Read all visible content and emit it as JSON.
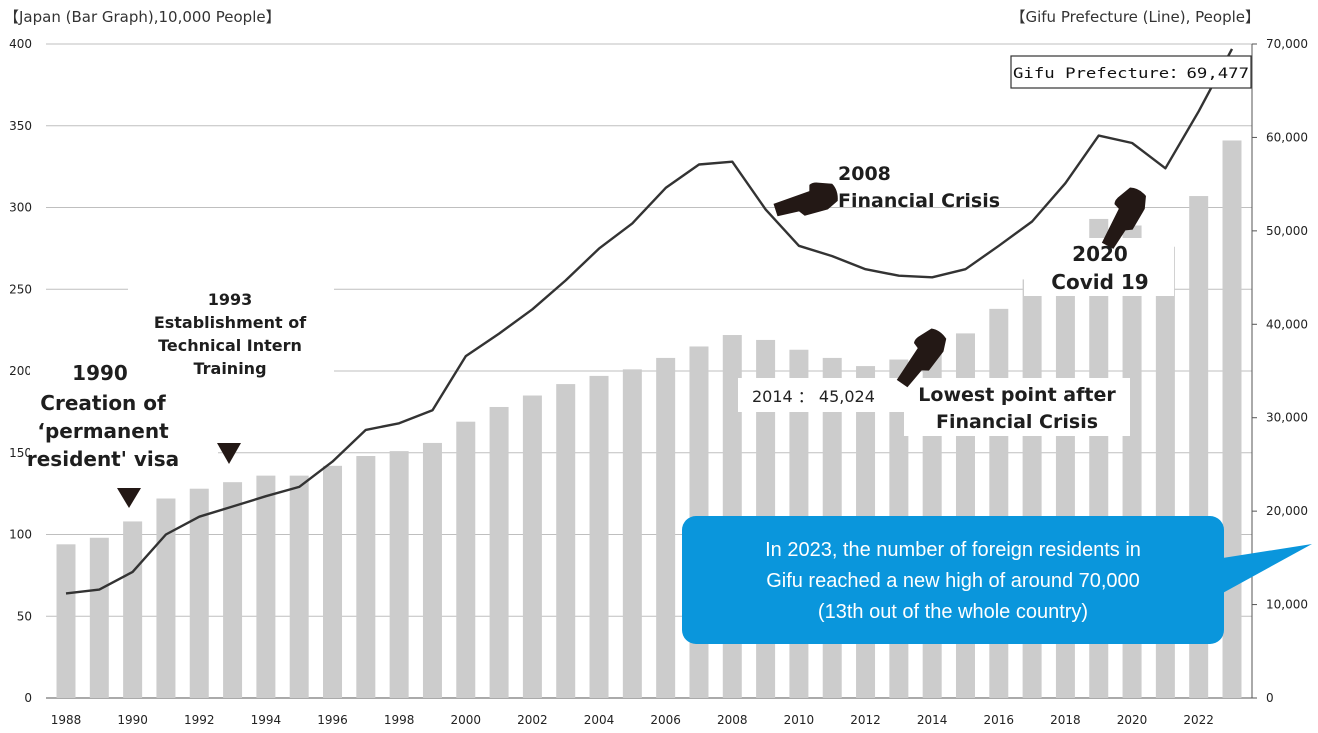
{
  "chart_data": {
    "type": "bar+line",
    "left_axis_title": "【Japan (Bar Graph),10,000 People】",
    "right_axis_title": "【Gifu Prefecture (Line), People】",
    "x": [
      1988,
      1989,
      1990,
      1991,
      1992,
      1993,
      1994,
      1995,
      1996,
      1997,
      1998,
      1999,
      2000,
      2001,
      2002,
      2003,
      2004,
      2005,
      2006,
      2007,
      2008,
      2009,
      2010,
      2011,
      2012,
      2013,
      2014,
      2015,
      2016,
      2017,
      2018,
      2019,
      2020,
      2021,
      2022,
      2023
    ],
    "x_tick_labels": [
      "1988",
      "1990",
      "1992",
      "1994",
      "1996",
      "1998",
      "2000",
      "2002",
      "2004",
      "2006",
      "2008",
      "2010",
      "2012",
      "2014",
      "2016",
      "2018",
      "2020",
      "2022"
    ],
    "left_ylim": [
      0,
      400
    ],
    "left_ticks": [
      "0",
      "50",
      "100",
      "150",
      "200",
      "250",
      "300",
      "350",
      "400"
    ],
    "right_ylim": [
      0,
      70000
    ],
    "right_ticks": [
      "0",
      "10,000",
      "20,000",
      "30,000",
      "40,000",
      "50,000",
      "60,000",
      "70,000"
    ],
    "bar_color": "#cccccc",
    "line_color": "#333333",
    "series": [
      {
        "type": "bar",
        "axis": "left",
        "values": [
          94,
          98,
          108,
          122,
          128,
          132,
          136,
          136,
          142,
          148,
          151,
          156,
          169,
          178,
          185,
          192,
          197,
          201,
          208,
          215,
          222,
          219,
          213,
          208,
          203,
          207,
          212,
          223,
          238,
          256,
          273,
          293,
          289,
          276,
          307,
          341
        ]
      },
      {
        "type": "line",
        "axis": "right",
        "values": [
          11200,
          11600,
          13500,
          17500,
          19400,
          20500,
          21600,
          22600,
          25300,
          28700,
          29400,
          30800,
          36600,
          39000,
          41600,
          44700,
          48100,
          50800,
          54600,
          57100,
          57400,
          52300,
          48400,
          47300,
          45900,
          45200,
          45024,
          45900,
          48400,
          51000,
          55100,
          60200,
          59400,
          56700,
          62800,
          69477
        ]
      }
    ],
    "annotations": {
      "gifu_latest": "Gifu Prefecture：69,477",
      "crisis_2008": [
        "2008",
        "Financial Crisis"
      ],
      "covid_2020": [
        "2020",
        "Covid 19"
      ],
      "intern_1993": [
        "1993",
        "Establishment of",
        "Technical Intern",
        "Training"
      ],
      "visa_1990": [
        "1990",
        "Creation of",
        "‘permanent",
        "resident' visa"
      ],
      "low_2014_value": "2014 ： 45,024",
      "low_2014_text": [
        "Lowest point after",
        "Financial Crisis"
      ]
    },
    "callout": {
      "lines": [
        "In 2023, the number of foreign residents in",
        "Gifu reached a new high of around 70,000",
        "(13th out of the whole country)"
      ],
      "color": "#0a96dc"
    }
  }
}
